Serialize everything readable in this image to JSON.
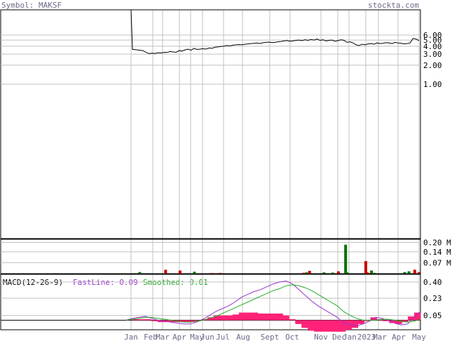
{
  "header": {
    "symbol_label": "Symbol: MAKSF",
    "site_label": "stockta.com"
  },
  "colors": {
    "header_text": "#6b6b8a",
    "grid": "#c0c0c0",
    "frame": "#000000",
    "price_line": "#000000",
    "vol_up": "#007000",
    "vol_down": "#cc0000",
    "macd_fast": "#9933cc",
    "macd_smooth": "#22aa22",
    "macd_hist": "#ff2277"
  },
  "chart_data": [
    {
      "type": "line",
      "title": "",
      "scale": "log",
      "y_ticks": [
        "6.00",
        "5.00",
        "4.00",
        "3.00",
        "2.00",
        "1.00"
      ],
      "y_tick_values": [
        6,
        5,
        4,
        3,
        2,
        1
      ],
      "x_ticks": [
        "Jan",
        "Feb",
        "Mar",
        "Apr",
        "May",
        "Jun",
        "Jul",
        "Aug",
        "Sept",
        "Oct",
        "Nov",
        "Dec",
        "Jan",
        "2023",
        "Mar",
        "Apr",
        "May"
      ],
      "series": [
        {
          "values": [
            40,
            3.55,
            3.5,
            3.45,
            3.4,
            3.2,
            3.05,
            3.1,
            3.08,
            3.15,
            3.12,
            3.2,
            3.18,
            3.3,
            3.25,
            3.2,
            3.4,
            3.35,
            3.5,
            3.6,
            3.45,
            3.7,
            3.55,
            3.6,
            3.65,
            3.6,
            3.75,
            3.7,
            3.85,
            3.9,
            3.95,
            4.0,
            4.1,
            4.05,
            4.15,
            4.2,
            4.25,
            4.2,
            4.3,
            4.35,
            4.4,
            4.45,
            4.5,
            4.4,
            4.55,
            4.6,
            4.65,
            4.55,
            4.6,
            4.7,
            4.75,
            4.85,
            4.9,
            4.8,
            4.85,
            4.95,
            5.0,
            4.9,
            5.05,
            4.95,
            5.1,
            5.0,
            5.2,
            4.95,
            5.05,
            4.85,
            4.95,
            5.0,
            4.8,
            4.9,
            5.05,
            4.95,
            4.6,
            4.7,
            4.5,
            4.2,
            4.1,
            4.3,
            4.2,
            4.35,
            4.4,
            4.3,
            4.5,
            4.4,
            4.45,
            4.55,
            4.5,
            4.4,
            4.6,
            4.5,
            4.45,
            4.35,
            4.4,
            4.5,
            5.3,
            5.2,
            4.9
          ]
        }
      ]
    },
    {
      "type": "bar",
      "title": "",
      "y_ticks": [
        "0.20 M",
        "0.14 M",
        "0.07 M"
      ],
      "y_tick_values": [
        0.2,
        0.14,
        0.07
      ],
      "bars": [
        {
          "t": 0.03,
          "v": 0.01,
          "up": true
        },
        {
          "t": 0.11,
          "v": 0.003,
          "up": true
        },
        {
          "t": 0.12,
          "v": 0.025,
          "up": false
        },
        {
          "t": 0.17,
          "v": 0.02,
          "up": false
        },
        {
          "t": 0.22,
          "v": 0.012,
          "up": true
        },
        {
          "t": 0.28,
          "v": 0.004,
          "up": false
        },
        {
          "t": 0.31,
          "v": 0.005,
          "up": false
        },
        {
          "t": 0.6,
          "v": 0.006,
          "up": false
        },
        {
          "t": 0.61,
          "v": 0.008,
          "up": true
        },
        {
          "t": 0.62,
          "v": 0.018,
          "up": false
        },
        {
          "t": 0.67,
          "v": 0.008,
          "up": true
        },
        {
          "t": 0.7,
          "v": 0.007,
          "up": true
        },
        {
          "t": 0.72,
          "v": 0.015,
          "up": false
        },
        {
          "t": 0.75,
          "v": 0.008,
          "up": true
        },
        {
          "t": 0.745,
          "v": 0.185,
          "up": true
        },
        {
          "t": 0.83,
          "v": 0.004,
          "up": false
        },
        {
          "t": 0.845,
          "v": 0.005,
          "up": true
        },
        {
          "t": 0.82,
          "v": 0.008,
          "up": false
        },
        {
          "t": 0.815,
          "v": 0.08,
          "up": false
        },
        {
          "t": 0.835,
          "v": 0.02,
          "up": true
        },
        {
          "t": 0.95,
          "v": 0.01,
          "up": true
        },
        {
          "t": 0.965,
          "v": 0.015,
          "up": true
        },
        {
          "t": 0.985,
          "v": 0.025,
          "up": false
        },
        {
          "t": 1.0,
          "v": 0.01,
          "up": false
        }
      ]
    },
    {
      "type": "line",
      "title": "MACD(12-26-9)",
      "fast_label": "FastLine: 0.09",
      "smooth_label": "Smoothed: 0.01",
      "y_ticks": [
        "0.40",
        "0.23",
        "0.05"
      ],
      "y_tick_values": [
        0.4,
        0.23,
        0.05
      ],
      "y_range": [
        -0.1,
        0.48
      ],
      "series": [
        {
          "name": "FastLine",
          "values": [
            0.0,
            0.02,
            0.03,
            0.04,
            0.02,
            0.0,
            -0.01,
            -0.02,
            -0.03,
            -0.04,
            -0.04,
            -0.02,
            0.01,
            0.05,
            0.09,
            0.12,
            0.15,
            0.19,
            0.24,
            0.27,
            0.3,
            0.32,
            0.35,
            0.38,
            0.4,
            0.41,
            0.38,
            0.32,
            0.26,
            0.2,
            0.15,
            0.11,
            0.07,
            0.03,
            -0.03,
            -0.05,
            -0.06,
            -0.04,
            -0.01,
            0.03,
            0.02,
            0.0,
            -0.03,
            -0.05,
            -0.04,
            0.03,
            0.09
          ]
        },
        {
          "name": "Smoothed",
          "values": [
            0.0,
            0.01,
            0.02,
            0.03,
            0.03,
            0.02,
            0.01,
            0.0,
            -0.01,
            -0.02,
            -0.02,
            -0.01,
            0.0,
            0.02,
            0.04,
            0.07,
            0.1,
            0.13,
            0.16,
            0.19,
            0.22,
            0.25,
            0.28,
            0.31,
            0.33,
            0.36,
            0.37,
            0.36,
            0.34,
            0.31,
            0.27,
            0.23,
            0.19,
            0.15,
            0.09,
            0.05,
            0.02,
            0.0,
            0.0,
            0.0,
            0.01,
            0.01,
            0.0,
            -0.01,
            -0.02,
            -0.01,
            0.01
          ]
        },
        {
          "name": "Histogram",
          "values": [
            0.0,
            0.01,
            0.01,
            0.01,
            -0.01,
            -0.02,
            -0.02,
            -0.02,
            -0.02,
            -0.02,
            -0.02,
            -0.01,
            0.01,
            0.03,
            0.05,
            0.05,
            0.05,
            0.06,
            0.08,
            0.08,
            0.08,
            0.07,
            0.07,
            0.07,
            0.07,
            0.05,
            0.01,
            -0.04,
            -0.08,
            -0.11,
            -0.12,
            -0.12,
            -0.12,
            -0.12,
            -0.12,
            -0.1,
            -0.08,
            -0.04,
            -0.01,
            0.03,
            0.01,
            -0.01,
            -0.03,
            -0.04,
            -0.02,
            0.04,
            0.08
          ]
        }
      ]
    }
  ]
}
